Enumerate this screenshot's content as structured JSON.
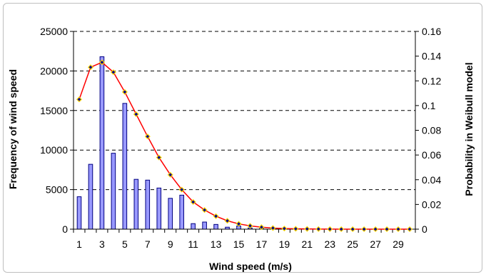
{
  "chart_data": {
    "type": "bar",
    "xlabel": "Wind speed (m/s)",
    "ylabel": "Frequency of wind speed",
    "y2label": "Probability in Weibull model",
    "ylim": [
      0,
      25000
    ],
    "y2lim": [
      0,
      0.16
    ],
    "xlim": [
      0.5,
      30.5
    ],
    "grid": true,
    "legend": "none",
    "x_tick_labels": [
      "1",
      "3",
      "5",
      "7",
      "9",
      "11",
      "13",
      "15",
      "17",
      "19",
      "21",
      "23",
      "25",
      "27",
      "29"
    ],
    "y_tick_labels": [
      "0",
      "5000",
      "10000",
      "15000",
      "20000",
      "25000"
    ],
    "y2_tick_labels": [
      "0",
      "0.02",
      "0.04",
      "0.06",
      "0.08",
      "0.1",
      "0.12",
      "0.14",
      "0.16"
    ],
    "x": [
      1,
      2,
      3,
      4,
      5,
      6,
      7,
      8,
      9,
      10,
      11,
      12,
      13,
      14,
      15,
      16,
      17,
      18,
      19,
      20,
      21,
      22,
      23,
      24,
      25,
      26,
      27,
      28,
      29,
      30
    ],
    "series": [
      {
        "type": "bar",
        "axis": "left",
        "color": "#9999ff",
        "values": [
          4100,
          8200,
          21800,
          9600,
          15900,
          6300,
          6200,
          5200,
          3900,
          4300,
          700,
          900,
          600,
          250,
          400,
          150,
          100,
          80,
          50,
          40,
          30,
          20,
          15,
          10,
          10,
          5,
          5,
          5,
          5,
          5
        ]
      },
      {
        "type": "line",
        "axis": "right",
        "color": "#ff0000",
        "marker_color": "#00008b",
        "marker_edge": "#ffd700",
        "values": [
          0.105,
          0.131,
          0.135,
          0.127,
          0.111,
          0.093,
          0.075,
          0.058,
          0.044,
          0.032,
          0.022,
          0.0155,
          0.0105,
          0.0068,
          0.0043,
          0.0027,
          0.0016,
          0.0009,
          0.0005,
          0.0003,
          0.0002,
          0.0001,
          5e-05,
          0,
          0,
          0,
          0,
          0,
          0,
          0
        ]
      }
    ]
  }
}
